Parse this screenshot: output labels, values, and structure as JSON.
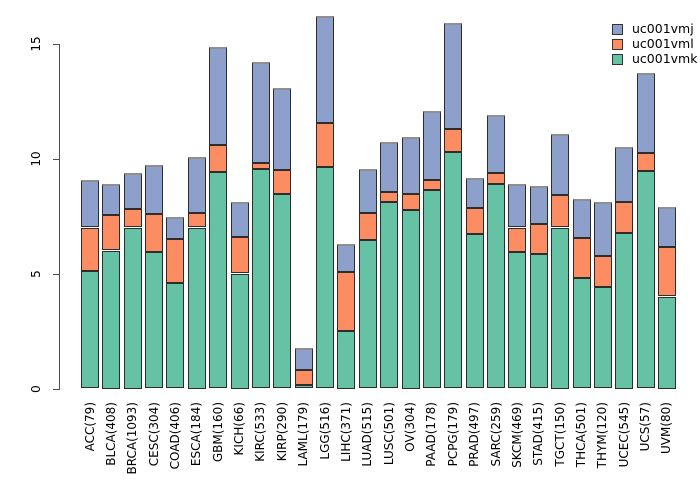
{
  "figure": {
    "background": "#ffffff",
    "axis_color": "#4d4d4d",
    "bar_border_color": "#2d2d2d",
    "bar_top_edge_color": "#8f8f8f"
  },
  "legend": {
    "entries": [
      {
        "label": "uc001vmj",
        "color": "#8DA0CB"
      },
      {
        "label": "uc001vml",
        "color": "#FC8D62"
      },
      {
        "label": "uc001vmk",
        "color": "#66C2A5"
      }
    ]
  },
  "chart_data": {
    "type": "bar",
    "stacked": true,
    "title": "",
    "xlabel": "",
    "ylabel": "",
    "ylim": [
      0,
      16.5
    ],
    "yticks": [
      0,
      5,
      10,
      15
    ],
    "grid": false,
    "legend_position": "top-right",
    "categories": [
      "ACC(79)",
      "BLCA(408)",
      "BRCA(1093)",
      "CESC(304)",
      "COAD(406)",
      "ESCA(184)",
      "GBM(160)",
      "KICH(66)",
      "KIRC(533)",
      "KIRP(290)",
      "LAML(179)",
      "LGG(516)",
      "LIHC(371)",
      "LUAD(515)",
      "LUSC(501)",
      "OV(304)",
      "PAAD(178)",
      "PCPG(179)",
      "PRAD(497)",
      "SARC(259)",
      "SKCM(469)",
      "STAD(415)",
      "TGCT(150)",
      "THCA(501)",
      "THYM(120)",
      "UCEC(545)",
      "UCS(57)",
      "UVM(80)"
    ],
    "series": [
      {
        "name": "uc001vmk",
        "color": "#66C2A5",
        "values": [
          5.1,
          6.0,
          7.0,
          5.95,
          4.6,
          7.0,
          9.4,
          5.0,
          9.55,
          8.45,
          0.15,
          9.65,
          2.5,
          6.45,
          8.1,
          7.75,
          8.65,
          10.3,
          6.7,
          8.9,
          5.95,
          5.85,
          7.0,
          4.8,
          4.4,
          6.75,
          9.45,
          4.0
        ]
      },
      {
        "name": "uc001vml",
        "color": "#FC8D62",
        "values": [
          1.9,
          1.55,
          0.8,
          1.65,
          1.9,
          0.65,
          1.2,
          1.6,
          0.25,
          1.05,
          0.65,
          1.9,
          2.55,
          1.2,
          0.45,
          0.7,
          0.4,
          1.0,
          1.15,
          0.45,
          1.05,
          1.3,
          1.4,
          1.75,
          1.35,
          1.35,
          0.8,
          2.15
        ]
      },
      {
        "name": "uc001vmj",
        "color": "#8DA0CB",
        "values": [
          2.05,
          1.35,
          1.55,
          2.1,
          0.95,
          2.4,
          4.25,
          1.5,
          4.4,
          3.55,
          0.95,
          4.65,
          1.25,
          1.9,
          2.15,
          2.5,
          3.0,
          4.6,
          1.3,
          2.55,
          1.9,
          1.65,
          2.65,
          1.7,
          2.35,
          2.4,
          3.45,
          1.75
        ]
      }
    ]
  }
}
